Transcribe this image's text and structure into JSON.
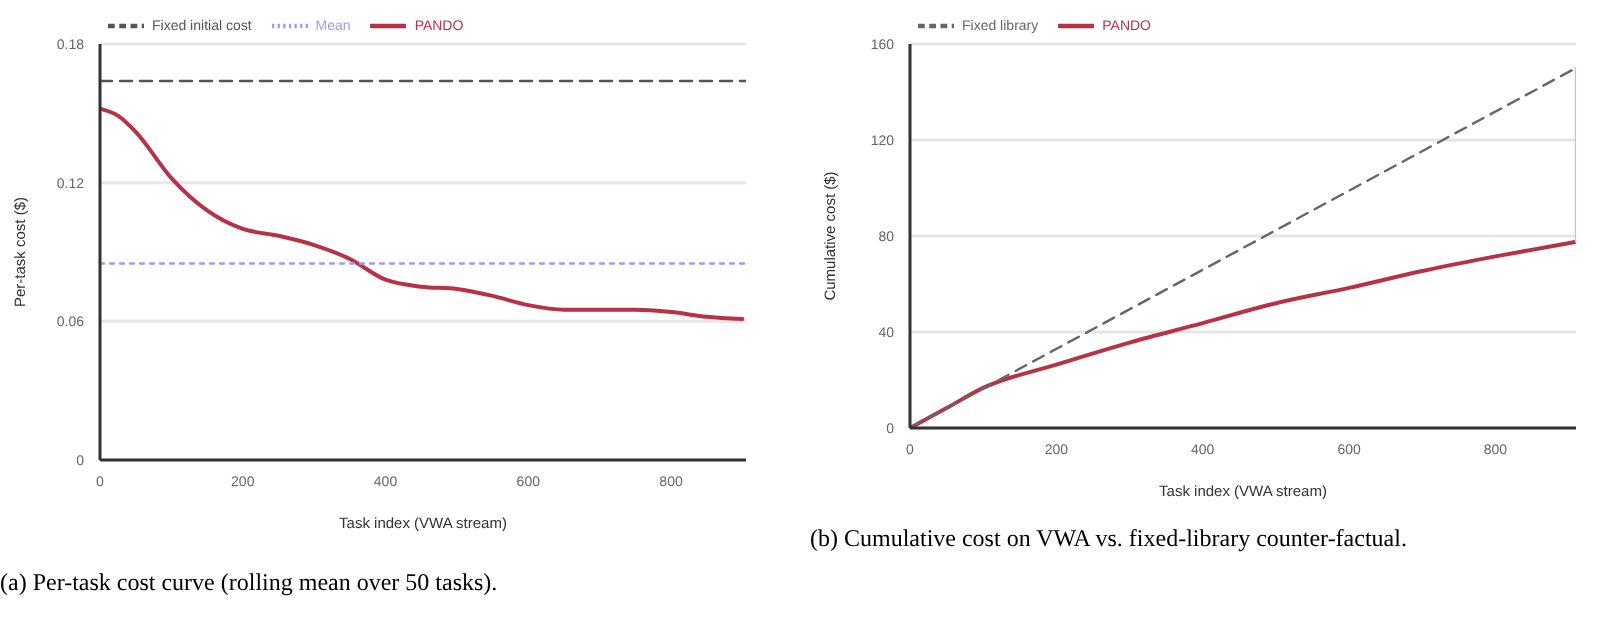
{
  "chart_data": [
    {
      "type": "line",
      "xlabel": "Task index (VWA stream)",
      "ylabel": "Per-task cost ($)",
      "xlim": [
        0,
        905
      ],
      "xticks": [
        0,
        200,
        400,
        600,
        800
      ],
      "ylim": [
        0,
        0.18
      ],
      "yticks": [
        0,
        0.06,
        0.12,
        0.18
      ],
      "grid": "y",
      "legend": "top",
      "marker": "none",
      "series": [
        {
          "name": "PANDO",
          "color": "#b83245",
          "line_style": "solid",
          "x": [
            0,
            25,
            50,
            100,
            150,
            200,
            250,
            300,
            350,
            400,
            450,
            500,
            550,
            600,
            650,
            700,
            750,
            800,
            850,
            900
          ],
          "values": [
            0.152,
            0.149,
            0.142,
            0.122,
            0.108,
            0.1,
            0.097,
            0.093,
            0.087,
            0.078,
            0.075,
            0.074,
            0.071,
            0.067,
            0.065,
            0.065,
            0.065,
            0.064,
            0.062,
            0.061
          ]
        },
        {
          "name": "Fixed initial cost",
          "color": "#555555",
          "line_style": "dashed",
          "x": [
            0,
            905
          ],
          "values": [
            0.164,
            0.164
          ]
        },
        {
          "name": "Mean",
          "color": "#a09cf0",
          "line_style": "dotted",
          "x": [
            0,
            905
          ],
          "values": [
            0.085,
            0.085
          ]
        }
      ],
      "annotations": [
        "(a) Per-task cost curve (rolling mean over 50 tasks)."
      ]
    },
    {
      "type": "line",
      "xlabel": "Task index (VWA stream)",
      "ylabel": "Cumulative cost ($)",
      "xlim": [
        0,
        910
      ],
      "xticks": [
        0,
        200,
        400,
        600,
        800
      ],
      "ylim": [
        0,
        160
      ],
      "yticks": [
        0,
        40,
        80,
        120,
        160
      ],
      "grid": "y",
      "legend": "top",
      "marker": "none",
      "series": [
        {
          "name": "PANDO",
          "color": "#b83245",
          "line_style": "solid",
          "x": [
            0,
            50,
            100,
            200,
            300,
            400,
            500,
            600,
            700,
            800,
            910
          ],
          "values": [
            0,
            8.3,
            16.7,
            26.4,
            35.6,
            43.7,
            52,
            58.4,
            65.4,
            71.5,
            77.6
          ]
        },
        {
          "name": "Fixed library",
          "color": "#666666",
          "line_style": "dashed",
          "x": [
            0,
            910
          ],
          "values": [
            0,
            150
          ]
        },
        {
          "color": "#e8b4bc",
          "line_style": "solid",
          "x": [
            910,
            910
          ],
          "values": [
            77.6,
            150
          ]
        }
      ],
      "annotations": [
        "(b) Cumulative cost on VWA vs. fixed-library counter-factual."
      ]
    }
  ]
}
